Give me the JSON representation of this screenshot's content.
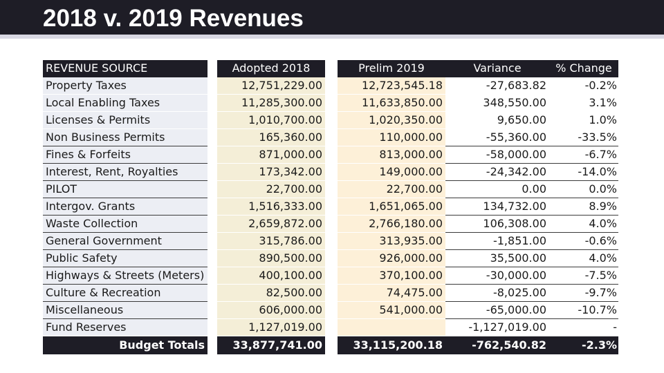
{
  "slide": {
    "title": "2018 v. 2019 Revenues"
  },
  "table": {
    "headers": {
      "source": "REVENUE SOURCE",
      "adopted_2018": "Adopted 2018",
      "prelim_2019": "Prelim 2019",
      "variance": "Variance",
      "pct_change": "% Change"
    },
    "rows": [
      {
        "source": "Property Taxes",
        "adopted_2018": "12,751,229.00",
        "prelim_2019": "12,723,545.18",
        "variance": "-27,683.82",
        "pct_change": "-0.2%"
      },
      {
        "source": "Local Enabling Taxes",
        "adopted_2018": "11,285,300.00",
        "prelim_2019": "11,633,850.00",
        "variance": "348,550.00",
        "pct_change": "3.1%"
      },
      {
        "source": "Licenses & Permits",
        "adopted_2018": "1,010,700.00",
        "prelim_2019": "1,020,350.00",
        "variance": "9,650.00",
        "pct_change": "1.0%"
      },
      {
        "source": "Non Business Permits",
        "adopted_2018": "165,360.00",
        "prelim_2019": "110,000.00",
        "variance": "-55,360.00",
        "pct_change": "-33.5%"
      },
      {
        "source": "Fines & Forfeits",
        "adopted_2018": "871,000.00",
        "prelim_2019": "813,000.00",
        "variance": "-58,000.00",
        "pct_change": "-6.7%"
      },
      {
        "source": "Interest, Rent, Royalties",
        "adopted_2018": "173,342.00",
        "prelim_2019": "149,000.00",
        "variance": "-24,342.00",
        "pct_change": "-14.0%"
      },
      {
        "source": "PILOT",
        "adopted_2018": "22,700.00",
        "prelim_2019": "22,700.00",
        "variance": "0.00",
        "pct_change": "0.0%"
      },
      {
        "source": "Intergov. Grants",
        "adopted_2018": "1,516,333.00",
        "prelim_2019": "1,651,065.00",
        "variance": "134,732.00",
        "pct_change": "8.9%"
      },
      {
        "source": "Waste Collection",
        "adopted_2018": "2,659,872.00",
        "prelim_2019": "2,766,180.00",
        "variance": "106,308.00",
        "pct_change": "4.0%"
      },
      {
        "source": "General Government",
        "adopted_2018": "315,786.00",
        "prelim_2019": "313,935.00",
        "variance": "-1,851.00",
        "pct_change": "-0.6%"
      },
      {
        "source": "Public Safety",
        "adopted_2018": "890,500.00",
        "prelim_2019": "926,000.00",
        "variance": "35,500.00",
        "pct_change": "4.0%"
      },
      {
        "source": "Highways & Streets (Meters)",
        "adopted_2018": "400,100.00",
        "prelim_2019": "370,100.00",
        "variance": "-30,000.00",
        "pct_change": "-7.5%"
      },
      {
        "source": "Culture & Recreation",
        "adopted_2018": "82,500.00",
        "prelim_2019": "74,475.00",
        "variance": "-8,025.00",
        "pct_change": "-9.7%"
      },
      {
        "source": "Miscellaneous",
        "adopted_2018": "606,000.00",
        "prelim_2019": "541,000.00",
        "variance": "-65,000.00",
        "pct_change": "-10.7%"
      },
      {
        "source": "Fund Reserves",
        "adopted_2018": "1,127,019.00",
        "prelim_2019": "",
        "variance": "-1,127,019.00",
        "pct_change": "-"
      }
    ],
    "totals": {
      "source": "Budget Totals",
      "adopted_2018": "33,877,741.00",
      "prelim_2019": "33,115,200.18",
      "variance": "-762,540.82",
      "pct_change": "-2.3%"
    }
  }
}
